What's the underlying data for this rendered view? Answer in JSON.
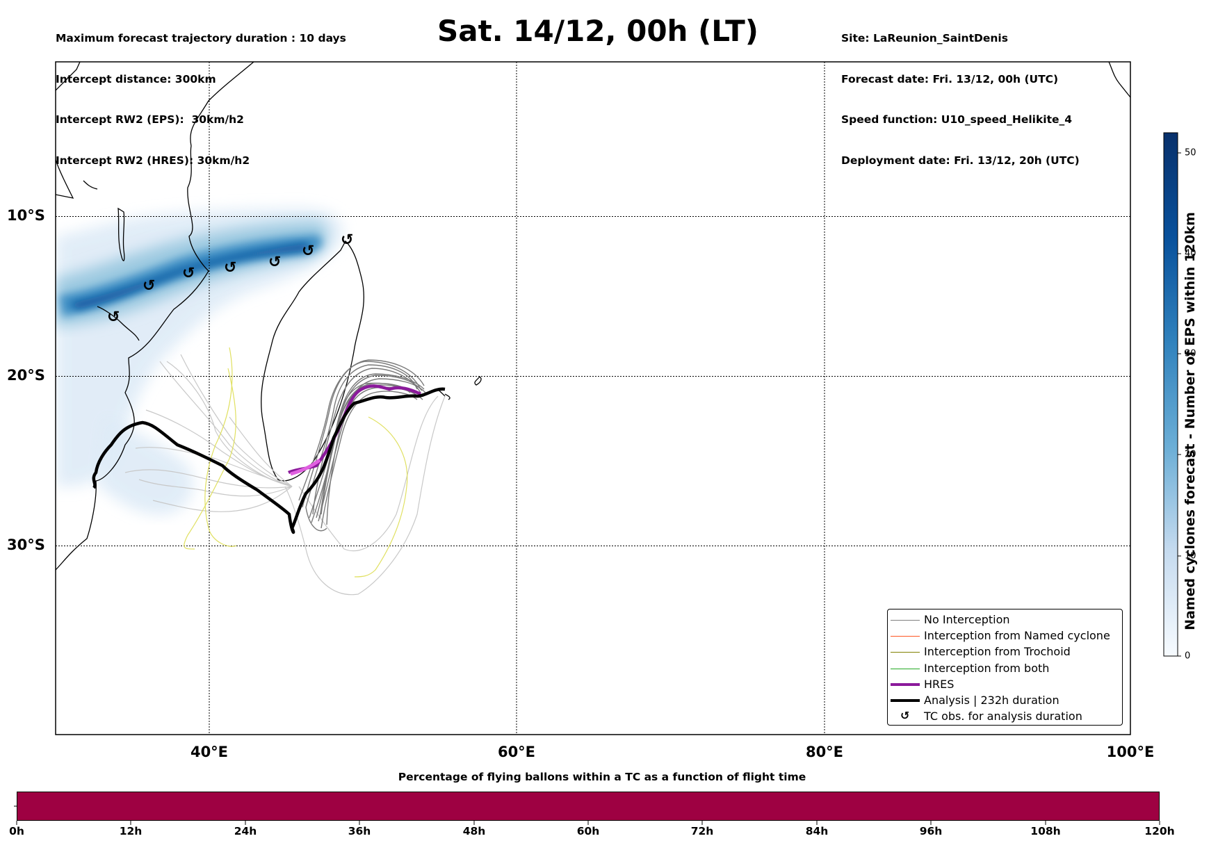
{
  "header_left": {
    "line1": "Maximum forecast trajectory duration : 10 days",
    "line2": "Intercept distance: 300km",
    "line3": "Intercept RW2 (EPS):  30km/h2",
    "line4": "Intercept RW2 (HRES): 30km/h2"
  },
  "title": "Sat. 14/12, 00h (LT)",
  "header_right": {
    "line1": "Site: LaReunion_SaintDenis",
    "line2": "Forecast date: Fri. 13/12, 00h (UTC)",
    "line3": "Speed function: U10_speed_Helikite_4",
    "line4": "Deployment date: Fri. 13/12, 20h (UTC)"
  },
  "map": {
    "lon_range": [
      30,
      100
    ],
    "lat_range": [
      -42,
      0
    ],
    "lat_labels": [
      "10°S",
      "20°S",
      "30°S"
    ],
    "lon_labels": [
      "40°E",
      "60°E",
      "80°E",
      "100°E"
    ],
    "gridlines": "dotted"
  },
  "colorbar": {
    "title": "Named cyclones forecast - Number of EPS within 120km",
    "ticks": [
      "0",
      "10",
      "20",
      "30",
      "40",
      "50"
    ],
    "max": 52,
    "colormap": "Blues"
  },
  "legend": [
    {
      "label": "No Interception",
      "color": "#808080",
      "style": "thin"
    },
    {
      "label": "Interception from Named cyclone",
      "color": "#ff5522",
      "style": "thin"
    },
    {
      "label": "Interception from Trochoid",
      "color": "#808000",
      "style": "thin"
    },
    {
      "label": "Interception from both",
      "color": "#22aa22",
      "style": "thin"
    },
    {
      "label": "HRES",
      "color": "#8b1a9b",
      "style": "thick"
    },
    {
      "label": "Analysis | 232h duration",
      "color": "#000000",
      "style": "thick"
    },
    {
      "label": "TC obs. for analysis duration",
      "color": "#000000",
      "style": "marker"
    }
  ],
  "bottom": {
    "title": "Percentage of flying ballons within a TC as a function of flight time",
    "bar_color": "#9e0142",
    "ticks": [
      "0h",
      "12h",
      "24h",
      "36h",
      "48h",
      "60h",
      "72h",
      "84h",
      "96h",
      "108h",
      "120h"
    ]
  }
}
